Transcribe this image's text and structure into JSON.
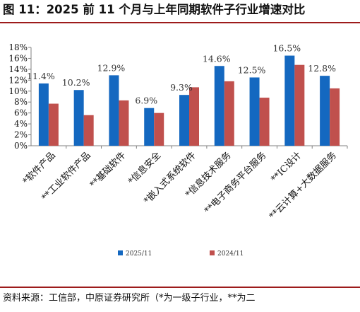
{
  "figure": {
    "title": "图 11：2025 前 11 个月与上年同期软件子行业增速对比",
    "source": "资料来源：工信部，中原证券研究所（*为一级子行业，**为二"
  },
  "colors": {
    "series_2025": "#1468c0",
    "series_2024": "#c0504d",
    "title_rule": "#9d1b1b"
  },
  "chart_data": {
    "type": "bar",
    "categories": [
      "*软件产品",
      "**工业软件产品",
      "**基础软件",
      "*信息安全",
      "*嵌入式系统软件",
      "*信息技术服务",
      "**电子商务平台服务",
      "**IC设计",
      "**云计算+大数据服务"
    ],
    "series": [
      {
        "name": "2025/11",
        "values": [
          11.4,
          10.2,
          12.9,
          6.9,
          9.3,
          14.6,
          12.5,
          16.5,
          12.8
        ]
      },
      {
        "name": "2024/11",
        "values": [
          7.7,
          5.6,
          8.3,
          6.0,
          10.7,
          11.8,
          8.8,
          14.8,
          10.5
        ]
      }
    ],
    "data_labels": [
      "11.4%",
      "10.2%",
      "12.9%",
      "6.9%",
      "9.3%",
      "14.6%",
      "12.5%",
      "16.5%",
      "12.8%"
    ],
    "yticks": [
      "0%",
      "2%",
      "4%",
      "6%",
      "8%",
      "10%",
      "12%",
      "14%",
      "16%",
      "18%"
    ],
    "ylim": [
      0,
      18
    ],
    "legend": "bottom",
    "grid": false
  }
}
